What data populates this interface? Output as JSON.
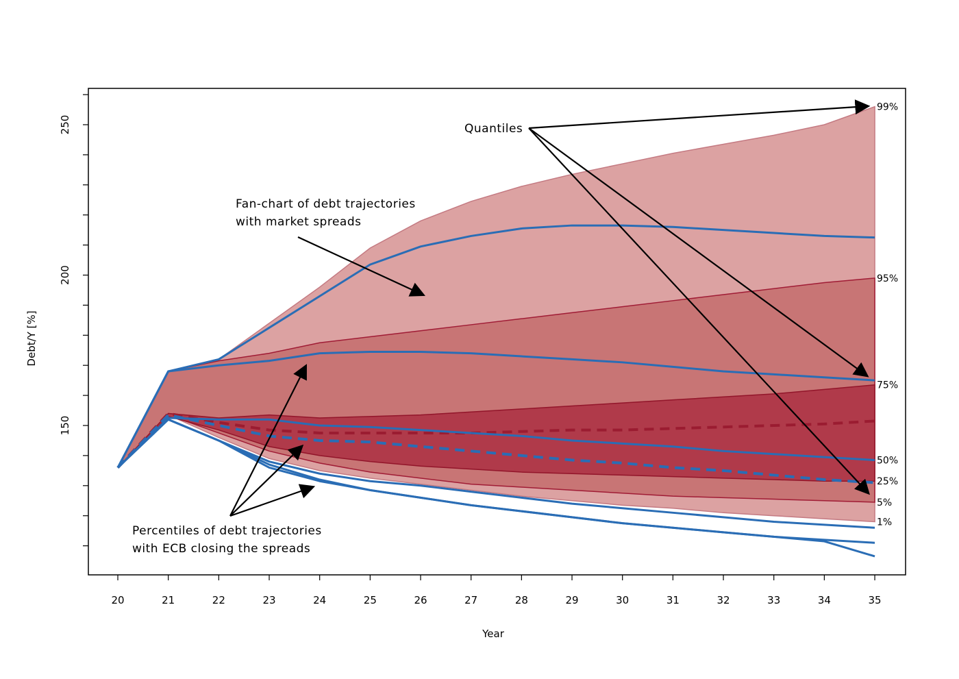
{
  "chart_data": {
    "type": "area",
    "xlabel": "Year",
    "ylabel": "Debt/Y [%]",
    "xlim": [
      20,
      35
    ],
    "ylim": [
      105,
      262
    ],
    "x_ticks": [
      20,
      21,
      22,
      23,
      24,
      25,
      26,
      27,
      28,
      29,
      30,
      31,
      32,
      33,
      34,
      35
    ],
    "y_ticks": [
      110,
      120,
      130,
      140,
      150,
      160,
      170,
      180,
      190,
      200,
      210,
      220,
      230,
      240,
      250,
      260
    ],
    "y_tick_labels": [
      {
        "value": 150,
        "label": "150"
      },
      {
        "value": 200,
        "label": "200"
      },
      {
        "value": 250,
        "label": "250"
      }
    ],
    "x": [
      20,
      21,
      22,
      23,
      24,
      25,
      26,
      27,
      28,
      29,
      30,
      31,
      32,
      33,
      34,
      35
    ],
    "fan_bands": [
      {
        "lower_quantile": "1%",
        "upper_quantile": "99%",
        "color": "#dca2a2",
        "edge": "#c47a82",
        "upper": [
          136,
          168,
          172,
          184,
          196,
          209,
          218,
          224.5,
          229.5,
          233.5,
          237,
          240.5,
          243.5,
          246.5,
          250,
          256
        ],
        "lower": [
          136,
          153.5,
          146,
          139,
          135,
          132.5,
          130.5,
          128.5,
          126.5,
          125,
          123.5,
          122.5,
          121,
          120,
          119,
          118
        ]
      },
      {
        "lower_quantile": "5%",
        "upper_quantile": "95%",
        "color": "#c87575",
        "edge": "#a01c35",
        "upper": [
          136,
          168,
          171.5,
          174,
          177.5,
          179.5,
          181.5,
          183.5,
          185.5,
          187.5,
          189.5,
          191.5,
          193.5,
          195.5,
          197.5,
          199
        ],
        "lower": [
          136,
          153.5,
          147.5,
          141.5,
          137.5,
          134.5,
          132.5,
          130.5,
          129.5,
          128.5,
          127.5,
          126.5,
          126,
          125.5,
          125,
          124.5
        ]
      },
      {
        "lower_quantile": "25%",
        "upper_quantile": "75%",
        "color": "#b03a4a",
        "edge": "#92152a",
        "upper": [
          136,
          154,
          152.5,
          153.5,
          152.5,
          153,
          153.5,
          154.5,
          155.5,
          156.5,
          157.5,
          158.5,
          159.5,
          160.5,
          162,
          163.5
        ],
        "lower": [
          136,
          153,
          148.5,
          143,
          140,
          138,
          136.5,
          135.5,
          134.5,
          134,
          133.5,
          133,
          132.5,
          132,
          131.5,
          131.5
        ]
      }
    ],
    "series": [
      {
        "color": "#9b1c31",
        "style": "dashed",
        "width": 4,
        "values": [
          136,
          154,
          151,
          148.5,
          147.5,
          147.5,
          147.5,
          147.5,
          148,
          148.5,
          148.5,
          149,
          149.5,
          150,
          150.5,
          151.5
        ]
      },
      {
        "color": "#2a6db5",
        "style": "solid",
        "width": 3,
        "values": [
          136,
          168,
          172,
          182.5,
          193,
          203.5,
          209.5,
          213,
          215.5,
          216.5,
          216.5,
          216,
          215,
          214,
          213,
          212.5
        ]
      },
      {
        "color": "#2a6db5",
        "style": "solid",
        "width": 3,
        "values": [
          136,
          168,
          170,
          171.5,
          174,
          174.5,
          174.5,
          174,
          173,
          172,
          171,
          169.5,
          168,
          167,
          166,
          165
        ]
      },
      {
        "color": "#2a6db5",
        "style": "solid",
        "width": 3,
        "values": [
          136,
          152.5,
          152,
          152,
          150,
          149.5,
          148.5,
          147.5,
          146.5,
          145,
          144,
          143,
          141.5,
          140.5,
          139.5,
          138.5
        ]
      },
      {
        "color": "#2a6db5",
        "style": "dashed",
        "width": 4,
        "values": [
          136,
          153.5,
          150,
          146.5,
          145,
          144.5,
          143,
          141.5,
          140,
          138.5,
          137.5,
          136,
          135,
          133.5,
          132,
          131
        ]
      },
      {
        "color": "#2a6db5",
        "style": "solid",
        "width": 3,
        "values": [
          136,
          152,
          145,
          138,
          134,
          131.5,
          130,
          128,
          126,
          124,
          122.5,
          121,
          119.5,
          118,
          117,
          116
        ]
      },
      {
        "color": "#2a6db5",
        "style": "solid",
        "width": 3,
        "values": [
          136,
          152,
          145,
          137,
          132,
          128.5,
          126,
          123.5,
          121.5,
          119.5,
          117.5,
          116,
          114.5,
          113,
          112,
          111
        ]
      },
      {
        "color": "#2a6db5",
        "style": "solid",
        "width": 3,
        "values": [
          136,
          152,
          145,
          136,
          131.5,
          128.5,
          126,
          123.5,
          121.5,
          119.5,
          117.5,
          116,
          114.5,
          113,
          111.5,
          106.5
        ]
      }
    ],
    "quantile_labels": [
      {
        "label": "99%",
        "value": 256
      },
      {
        "label": "95%",
        "value": 199
      },
      {
        "label": "75%",
        "value": 163.5
      },
      {
        "label": "50%",
        "value": 138.5
      },
      {
        "label": "25%",
        "value": 131.5
      },
      {
        "label": "5%",
        "value": 124.5
      },
      {
        "label": "1%",
        "value": 118
      }
    ],
    "annotations": [
      {
        "name": "quantiles",
        "lines": [
          "Quantiles"
        ]
      },
      {
        "name": "fan-chart",
        "lines": [
          "Fan-chart of debt trajectories",
          "with market spreads"
        ]
      },
      {
        "name": "percentiles",
        "lines": [
          "Percentiles of debt trajectories",
          "with ECB closing the spreads"
        ]
      }
    ]
  }
}
